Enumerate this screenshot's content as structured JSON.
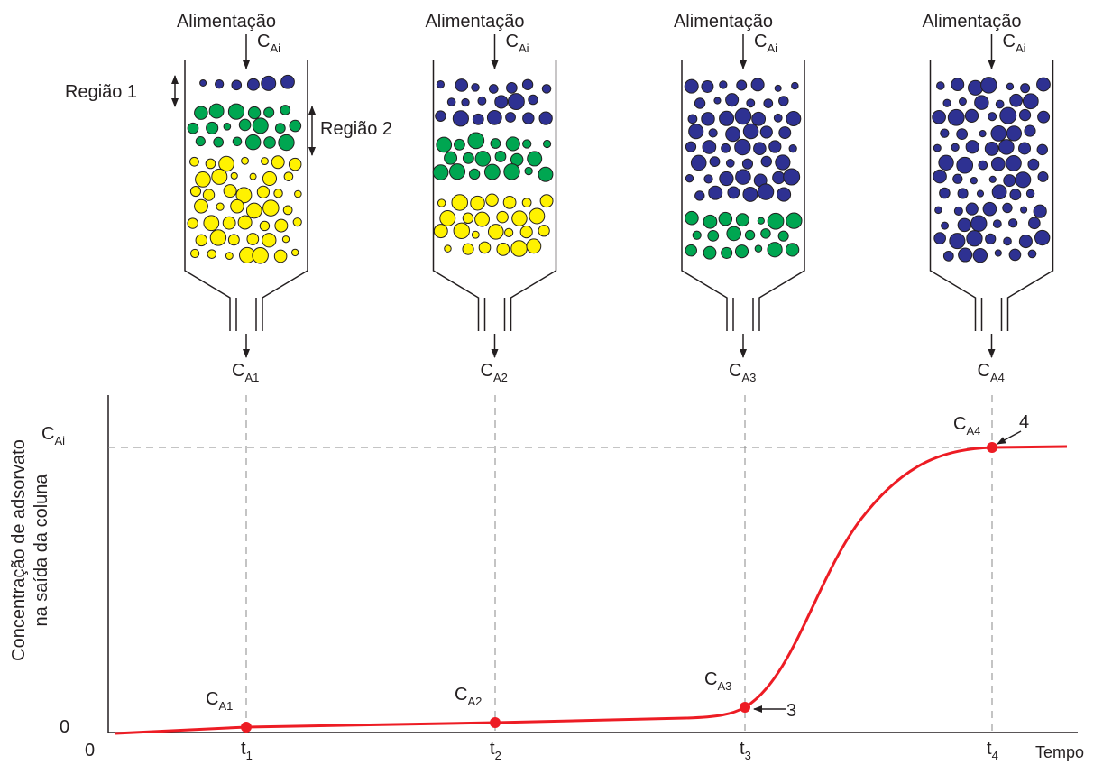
{
  "columns": [
    {
      "feed_label": "Alimentação",
      "feed_conc": {
        "main": "C",
        "sub": "Ai"
      },
      "outlet_conc": {
        "main": "C",
        "sub": "A1"
      }
    },
    {
      "feed_label": "Alimentação",
      "feed_conc": {
        "main": "C",
        "sub": "Ai"
      },
      "outlet_conc": {
        "main": "C",
        "sub": "A2"
      }
    },
    {
      "feed_label": "Alimentação",
      "feed_conc": {
        "main": "C",
        "sub": "Ai"
      },
      "outlet_conc": {
        "main": "C",
        "sub": "A3"
      }
    },
    {
      "feed_label": "Alimentação",
      "feed_conc": {
        "main": "C",
        "sub": "Ai"
      },
      "outlet_conc": {
        "main": "C",
        "sub": "A4"
      }
    }
  ],
  "regions": [
    "Região 1",
    "Região 2"
  ],
  "graph": {
    "y_label": [
      "Concentração de adsorvato",
      "na saída da coluna"
    ],
    "y_top": {
      "main": "C",
      "sub": "Ai"
    },
    "y_origin": "0",
    "x_origin": "0",
    "x_label": "Tempo",
    "x_ticks": [
      {
        "main": "t",
        "sub": "1"
      },
      {
        "main": "t",
        "sub": "2"
      },
      {
        "main": "t",
        "sub": "3"
      },
      {
        "main": "t",
        "sub": "4"
      }
    ],
    "points": [
      {
        "main": "C",
        "sub": "A1"
      },
      {
        "main": "C",
        "sub": "A2"
      },
      {
        "main": "C",
        "sub": "A3"
      },
      {
        "main": "C",
        "sub": "A4"
      }
    ],
    "markers": [
      "3",
      "4"
    ]
  }
}
